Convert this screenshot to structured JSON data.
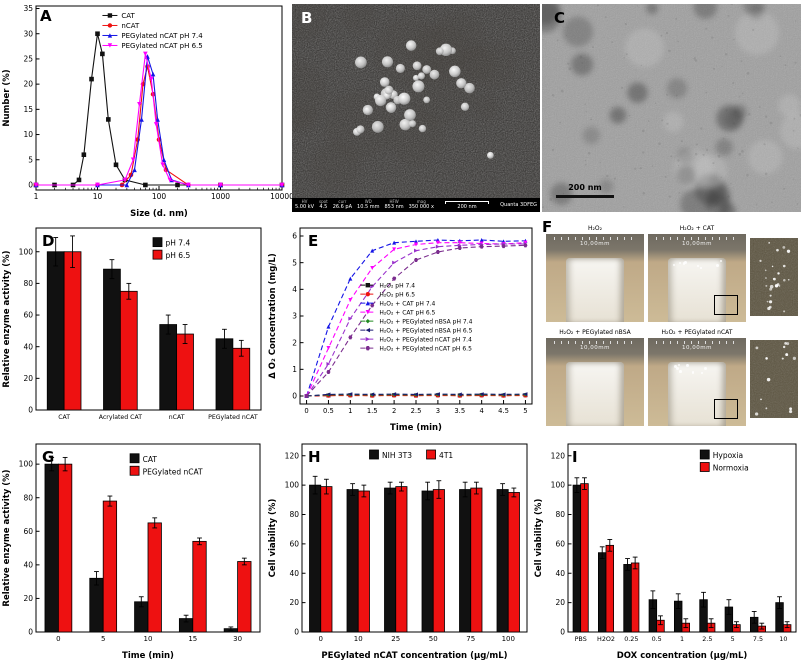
{
  "panels": {
    "A": "A",
    "B": "B",
    "C": "C",
    "D": "D",
    "E": "E",
    "F": "F",
    "G": "G",
    "H": "H",
    "I": "I"
  },
  "colors": {
    "black": "#111111",
    "red": "#ee1111",
    "blue": "#1414e6",
    "magenta": "#ff00ff",
    "green": "#228b22",
    "navy": "#191970",
    "violet": "#9932cc",
    "purple": "#7b2d8e"
  },
  "panel_b": {
    "info_bar": {
      "fields": [
        {
          "name": "HV",
          "value": "5.00 kV"
        },
        {
          "name": "spot",
          "value": "4.5"
        },
        {
          "name": "curr",
          "value": "26.6 pA"
        },
        {
          "name": "WD",
          "value": "10.5 mm"
        },
        {
          "name": "HFW",
          "value": "853 nm"
        },
        {
          "name": "mag",
          "value": "350 000 x"
        }
      ],
      "scale_label": "200 nm",
      "instrument": "Quanta 3DFEG"
    }
  },
  "panel_c": {
    "scale_label": "200 nm"
  },
  "panel_f": {
    "photos": [
      {
        "title": "H₂O₂",
        "ruler": "10,00mm"
      },
      {
        "title": "H₂O₂ + CAT",
        "ruler": "10,00mm"
      },
      {
        "title": "H₂O₂ + PEGylated nBSA",
        "ruler": "10,00mm"
      },
      {
        "title": "H₂O₂ + PEGylated nCAT",
        "ruler": "10,00mm"
      }
    ]
  },
  "chart_data": [
    {
      "panel": "A",
      "type": "line",
      "xscale": "log",
      "title": "",
      "xlabel": "Size (d. nm)",
      "ylabel": "Number (%)",
      "xlim": [
        1,
        10000
      ],
      "ylim": [
        -1,
        35.5
      ],
      "xticks": [
        1,
        10,
        100,
        1000,
        10000
      ],
      "yticks": [
        0,
        5,
        10,
        15,
        20,
        25,
        30,
        35
      ],
      "legend": {
        "fx": 0.27,
        "fy": 0.005,
        "font": 7
      },
      "series": [
        {
          "name": "CAT",
          "color": "#111111",
          "marker": "square",
          "x": [
            1,
            2,
            4,
            5,
            6,
            8,
            10,
            12,
            15,
            20,
            28,
            60,
            200,
            1000,
            10000
          ],
          "y": [
            0,
            0,
            0,
            1,
            6,
            21,
            30,
            26,
            13,
            4,
            1,
            0,
            0,
            0,
            0
          ]
        },
        {
          "name": "nCAT",
          "color": "#ee1111",
          "marker": "circle",
          "x": [
            1,
            10,
            25,
            35,
            45,
            55,
            65,
            80,
            100,
            130,
            300,
            1000,
            10000
          ],
          "y": [
            0,
            0,
            0,
            2,
            9,
            20,
            23.5,
            18,
            9,
            3,
            0,
            0,
            0
          ]
        },
        {
          "name": "PEGylated nCAT pH 7.4",
          "color": "#1414e6",
          "marker": "triangle-up",
          "x": [
            1,
            10,
            30,
            40,
            52,
            65,
            80,
            95,
            120,
            160,
            300,
            1000,
            10000
          ],
          "y": [
            0,
            0,
            0,
            3,
            13,
            25.5,
            22,
            13,
            5,
            1,
            0,
            0,
            0
          ]
        },
        {
          "name": "PEGylated nCAT pH 6.5",
          "color": "#ff00ff",
          "marker": "triangle-down",
          "x": [
            1,
            10,
            28,
            38,
            48,
            60,
            75,
            90,
            115,
            150,
            300,
            1000,
            10000
          ],
          "y": [
            0,
            0,
            1,
            5,
            16,
            26,
            21,
            12,
            4,
            1,
            0,
            0,
            0
          ]
        }
      ]
    },
    {
      "panel": "D",
      "type": "bar",
      "xlabel": "",
      "ylabel": "Relative enzyme activity (%)",
      "ylim": [
        0,
        115
      ],
      "yticks": [
        0,
        20,
        40,
        60,
        80,
        100
      ],
      "categories": [
        "CAT",
        "Acrylated CAT",
        "nCAT",
        "PEGylated nCAT"
      ],
      "legend": {
        "fx": 0.52,
        "fy": 0.02,
        "font": 7.5
      },
      "series": [
        {
          "name": "pH 7.4",
          "color": "#111111",
          "values": [
            100,
            89,
            54,
            45
          ],
          "errors": [
            9,
            6,
            6,
            6
          ]
        },
        {
          "name": "pH 6.5",
          "color": "#ee1111",
          "values": [
            100,
            75,
            48,
            39
          ],
          "errors": [
            10,
            5,
            6,
            5
          ]
        }
      ]
    },
    {
      "panel": "E",
      "type": "line",
      "xscale": "linear",
      "dash": "5,3",
      "xlabel": "Time (min)",
      "ylabel": "Δ O₂ Concentration (mg/L)",
      "xlim": [
        -0.15,
        5.15
      ],
      "ylim": [
        -0.3,
        6.3
      ],
      "xticks": [
        0,
        0.5,
        1,
        1.5,
        2,
        2.5,
        3,
        3.5,
        4,
        4.5,
        5
      ],
      "xtick_labels": [
        "0",
        "0.5",
        "1",
        "1.5",
        "2",
        "2.5",
        "3",
        "3.5",
        "4",
        "4.5",
        "5"
      ],
      "yticks": [
        0,
        1,
        2,
        3,
        4,
        5,
        6
      ],
      "legend": {
        "fx": 0.26,
        "fy": 0.28,
        "font": 6
      },
      "series": [
        {
          "name": "H₂O₂ pH 7.4",
          "color": "#111111",
          "marker": "square",
          "x": [
            0,
            0.5,
            1,
            1.5,
            2,
            2.5,
            3,
            3.5,
            4,
            4.5,
            5
          ],
          "y": [
            0,
            0.02,
            0.03,
            0.02,
            0.03,
            0.02,
            0.03,
            0.02,
            0.03,
            0.02,
            0.03
          ]
        },
        {
          "name": "H₂O₂ pH 6.5",
          "color": "#ee1111",
          "marker": "circle",
          "x": [
            0,
            0.5,
            1,
            1.5,
            2,
            2.5,
            3,
            3.5,
            4,
            4.5,
            5
          ],
          "y": [
            0,
            0.01,
            0.02,
            0.01,
            0.02,
            0.01,
            0.02,
            0.01,
            0.02,
            0.01,
            0.02
          ]
        },
        {
          "name": "H₂O₂ + CAT pH 7.4",
          "color": "#1414e6",
          "marker": "triangle-up",
          "x": [
            0,
            0.5,
            1,
            1.5,
            2,
            2.5,
            3,
            3.5,
            4,
            4.5,
            5
          ],
          "y": [
            0,
            2.6,
            4.4,
            5.45,
            5.75,
            5.8,
            5.85,
            5.82,
            5.85,
            5.8,
            5.82
          ]
        },
        {
          "name": "H₂O₂ + CAT pH 6.5",
          "color": "#ff00ff",
          "marker": "triangle-down",
          "x": [
            0,
            0.5,
            1,
            1.5,
            2,
            2.5,
            3,
            3.5,
            4,
            4.5,
            5
          ],
          "y": [
            0,
            1.8,
            3.6,
            4.8,
            5.5,
            5.68,
            5.75,
            5.75,
            5.72,
            5.7,
            5.75
          ]
        },
        {
          "name": "H₂O₂ + PEGylated nBSA pH 7.4",
          "color": "#228b22",
          "marker": "diamond",
          "x": [
            0,
            0.5,
            1,
            1.5,
            2,
            2.5,
            3,
            3.5,
            4,
            4.5,
            5
          ],
          "y": [
            0,
            0.04,
            0.05,
            0.04,
            0.05,
            0.04,
            0.05,
            0.04,
            0.05,
            0.04,
            0.05
          ]
        },
        {
          "name": "H₂O₂ + PEGylated nBSA pH 6.5",
          "color": "#191970",
          "marker": "triangle-left",
          "x": [
            0,
            0.5,
            1,
            1.5,
            2,
            2.5,
            3,
            3.5,
            4,
            4.5,
            5
          ],
          "y": [
            0,
            0.06,
            0.07,
            0.06,
            0.07,
            0.06,
            0.07,
            0.06,
            0.07,
            0.06,
            0.07
          ]
        },
        {
          "name": "H₂O₂ + PEGylated nCAT pH 7.4",
          "color": "#9932cc",
          "marker": "triangle-right",
          "x": [
            0,
            0.5,
            1,
            1.5,
            2,
            2.5,
            3,
            3.5,
            4,
            4.5,
            5
          ],
          "y": [
            0,
            1.2,
            2.9,
            4.1,
            5.0,
            5.45,
            5.6,
            5.65,
            5.68,
            5.7,
            5.7
          ]
        },
        {
          "name": "H₂O₂ + PEGylated nCAT pH 6.5",
          "color": "#7b2d8e",
          "marker": "hexagon",
          "x": [
            0,
            0.5,
            1,
            1.5,
            2,
            2.5,
            3,
            3.5,
            4,
            4.5,
            5
          ],
          "y": [
            0,
            0.9,
            2.2,
            3.4,
            4.4,
            5.1,
            5.4,
            5.55,
            5.6,
            5.62,
            5.65
          ]
        }
      ]
    },
    {
      "panel": "G",
      "type": "bar",
      "xlabel": "Time (min)",
      "ylabel": "Relative enzyme activity (%)",
      "ylim": [
        0,
        112
      ],
      "yticks": [
        0,
        20,
        40,
        60,
        80,
        100
      ],
      "categories": [
        "0",
        "5",
        "10",
        "15",
        "30"
      ],
      "legend": {
        "fx": 0.42,
        "fy": 0.02,
        "font": 7.5
      },
      "series": [
        {
          "name": "CAT",
          "color": "#111111",
          "values": [
            100,
            32,
            18,
            8,
            2
          ],
          "errors": [
            4,
            4,
            3,
            2,
            1
          ]
        },
        {
          "name": "PEGylated nCAT",
          "color": "#ee1111",
          "values": [
            100,
            78,
            65,
            54,
            42
          ],
          "errors": [
            4,
            3,
            3,
            2,
            2
          ]
        }
      ]
    },
    {
      "panel": "H",
      "type": "bar",
      "xlabel": "PEGylated nCAT concentration (μg/mL)",
      "ylabel": "Cell viability (%)",
      "ylim": [
        0,
        128
      ],
      "yticks": [
        0,
        20,
        40,
        60,
        80,
        100,
        120
      ],
      "categories": [
        "0",
        "10",
        "25",
        "50",
        "75",
        "100"
      ],
      "legend": {
        "fx": 0.3,
        "fy": 0.0,
        "font": 7.5,
        "horizontal": true
      },
      "series": [
        {
          "name": "NIH 3T3",
          "color": "#111111",
          "values": [
            100,
            97,
            98,
            96,
            97,
            97
          ],
          "errors": [
            6,
            4,
            4,
            6,
            5,
            4
          ]
        },
        {
          "name": "4T1",
          "color": "#ee1111",
          "values": [
            99,
            96,
            99,
            97,
            98,
            95
          ],
          "errors": [
            5,
            4,
            3,
            6,
            4,
            3
          ]
        }
      ]
    },
    {
      "panel": "I",
      "type": "bar",
      "xlabel": "DOX concentration (μg/mL)",
      "ylabel": "Cell viability (%)",
      "ylim": [
        0,
        128
      ],
      "yticks": [
        0,
        20,
        40,
        60,
        80,
        100,
        120
      ],
      "categories": [
        "PBS",
        "H2O2",
        "0.25",
        "0.5",
        "1",
        "2.5",
        "5",
        "7.5",
        "10"
      ],
      "legend": {
        "fx": 0.58,
        "fy": 0.0,
        "font": 7.5
      },
      "series": [
        {
          "name": "Hypoxia",
          "color": "#111111",
          "values": [
            100,
            54,
            46,
            22,
            21,
            22,
            17,
            10,
            20
          ],
          "errors": [
            5,
            4,
            4,
            6,
            5,
            5,
            5,
            4,
            4
          ]
        },
        {
          "name": "Normoxia",
          "color": "#ee1111",
          "values": [
            101,
            59,
            47,
            8,
            6,
            6,
            5,
            4,
            5
          ],
          "errors": [
            4,
            4,
            4,
            3,
            3,
            3,
            2,
            2,
            2
          ]
        }
      ]
    }
  ]
}
